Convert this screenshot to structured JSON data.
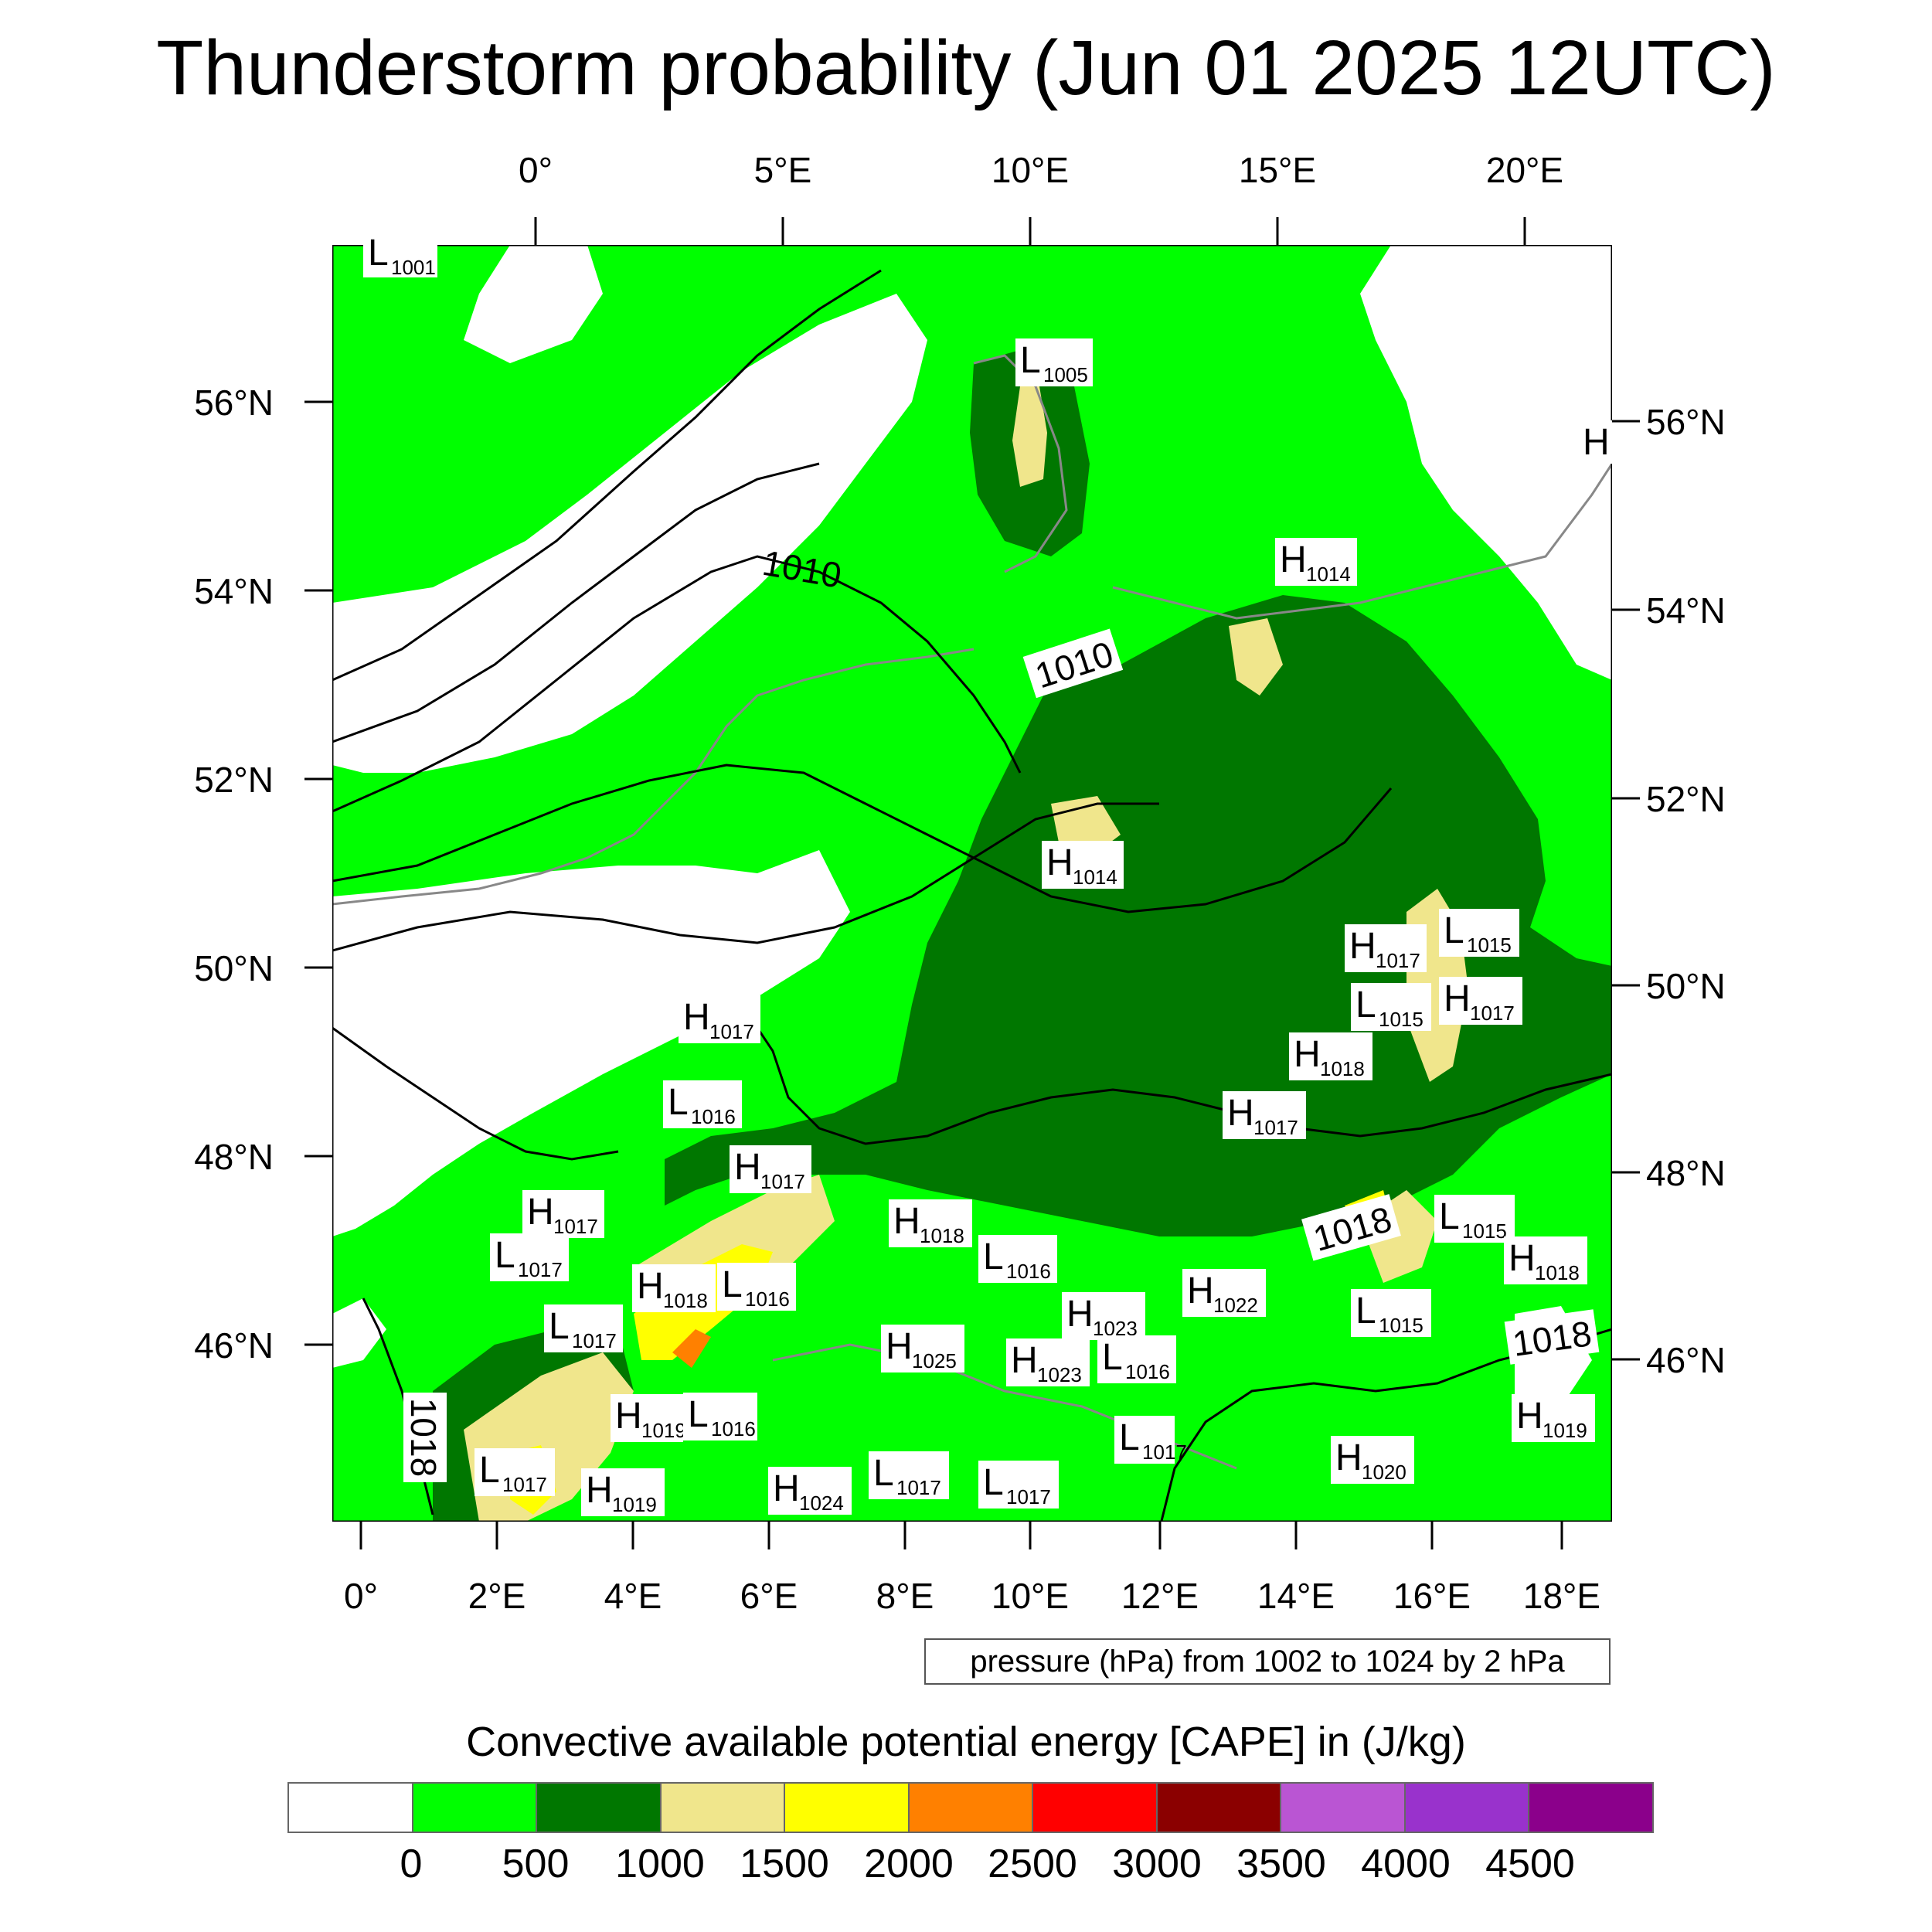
{
  "title": "Thunderstorm probability (Jun 01 2025 12UTC)",
  "top_lon_labels": [
    "0°",
    "5°E",
    "10°E",
    "15°E",
    "20°E"
  ],
  "bottom_lon_labels": [
    "0°",
    "2°E",
    "4°E",
    "6°E",
    "8°E",
    "10°E",
    "12°E",
    "14°E",
    "16°E",
    "18°E"
  ],
  "left_lat_labels": [
    "56°N",
    "54°N",
    "52°N",
    "50°N",
    "48°N",
    "46°N"
  ],
  "right_lat_labels": [
    "56°N",
    "54°N",
    "52°N",
    "50°N",
    "48°N",
    "46°N"
  ],
  "pressure_note": "pressure (hPa) from 1002 to 1024 by 2 hPa",
  "legend_title": "Convective available potential energy [CAPE] in (J/kg)",
  "colorbar": {
    "colors": [
      "#ffffff",
      "#00ff00",
      "#007700",
      "#f0e68c",
      "#ffff00",
      "#ff8000",
      "#ff0000",
      "#8b0000",
      "#ba55d3",
      "#9932cc",
      "#8b008b"
    ],
    "labels": [
      "0",
      "500",
      "1000",
      "1500",
      "2000",
      "2500",
      "3000",
      "3500",
      "4000",
      "4500"
    ]
  },
  "isobar_labels": [
    "1010",
    "1010",
    "1018",
    "1018",
    "1018"
  ],
  "pressure_centers": [
    {
      "type": "L",
      "value": "1001"
    },
    {
      "type": "L",
      "value": "1005"
    },
    {
      "type": "H",
      "value": ""
    },
    {
      "type": "H",
      "value": "1014"
    },
    {
      "type": "H",
      "value": "1014"
    },
    {
      "type": "H",
      "value": "1017"
    },
    {
      "type": "L",
      "value": "1015"
    },
    {
      "type": "L",
      "value": "1015"
    },
    {
      "type": "H",
      "value": "1017"
    },
    {
      "type": "H",
      "value": "1018"
    },
    {
      "type": "H",
      "value": "1017"
    },
    {
      "type": "H",
      "value": "1017"
    },
    {
      "type": "L",
      "value": "1016"
    },
    {
      "type": "H",
      "value": "1017"
    },
    {
      "type": "H",
      "value": "1017"
    },
    {
      "type": "L",
      "value": "1017"
    },
    {
      "type": "H",
      "value": "1018"
    },
    {
      "type": "L",
      "value": "1016"
    },
    {
      "type": "H",
      "value": "1018"
    },
    {
      "type": "L",
      "value": "1016"
    },
    {
      "type": "L",
      "value": "1015"
    },
    {
      "type": "H",
      "value": "1018"
    },
    {
      "type": "H",
      "value": "1022"
    },
    {
      "type": "H",
      "value": "1023"
    },
    {
      "type": "L",
      "value": "1015"
    },
    {
      "type": "L",
      "value": "1017"
    },
    {
      "type": "H",
      "value": "1025"
    },
    {
      "type": "H",
      "value": "1023"
    },
    {
      "type": "L",
      "value": "1016"
    },
    {
      "type": "H",
      "value": "1019"
    },
    {
      "type": "L",
      "value": "1016"
    },
    {
      "type": "H",
      "value": "1019"
    },
    {
      "type": "L",
      "value": "1017"
    },
    {
      "type": "L",
      "value": "1017"
    },
    {
      "type": "H",
      "value": "1020"
    },
    {
      "type": "L",
      "value": "1017"
    },
    {
      "type": "H",
      "value": "1019"
    },
    {
      "type": "H",
      "value": "1024"
    },
    {
      "type": "L",
      "value": "1017"
    }
  ]
}
